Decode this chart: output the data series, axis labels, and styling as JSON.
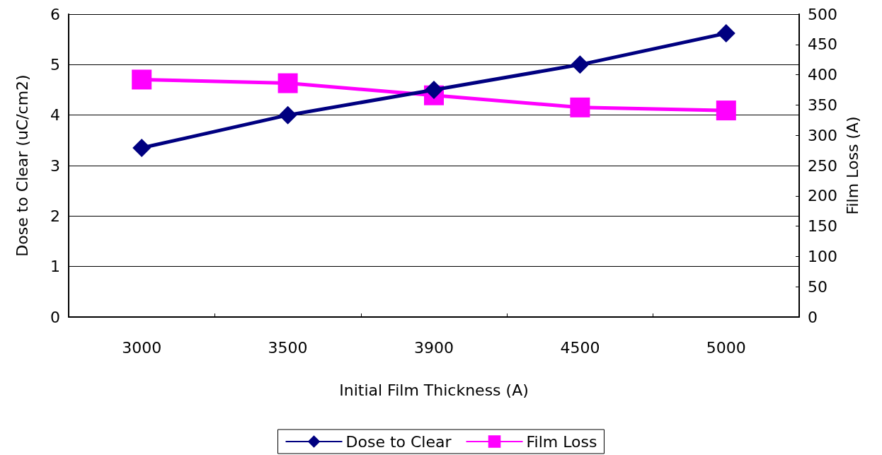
{
  "chart_data": {
    "type": "line",
    "xlabel": "Initial Film Thickness (A)",
    "ylabel": "Dose to Clear (uC/cm2)",
    "y2label": "Film Loss (A)",
    "categories": [
      "3000",
      "3500",
      "3900",
      "4500",
      "5000"
    ],
    "series": [
      {
        "name": "Dose to Clear",
        "color": "#000080",
        "values": [
          3.35,
          4.0,
          4.5,
          5.0,
          5.62
        ],
        "marker": "diamond"
      },
      {
        "name": "Film Loss",
        "color": "#ff00ff",
        "values": [
          392,
          386,
          366,
          346,
          341
        ],
        "axis": "y2",
        "marker": "square"
      }
    ],
    "ylim": [
      0,
      6
    ],
    "yticks": [
      0,
      1,
      2,
      3,
      4,
      5,
      6
    ],
    "y2lim": [
      0,
      500
    ],
    "y2ticks": [
      0,
      50,
      100,
      150,
      200,
      250,
      300,
      350,
      400,
      450,
      500
    ],
    "grid": "y",
    "legend": "bottom",
    "line_style": "solid"
  }
}
